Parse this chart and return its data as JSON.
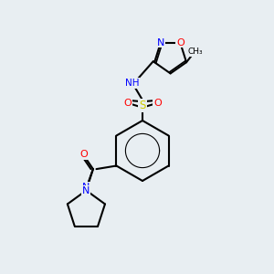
{
  "bg_color": "#e8eef2",
  "bond_color": "#000000",
  "bond_lw": 1.5,
  "atom_colors": {
    "N": "#0000ff",
    "O": "#ff0000",
    "S": "#cccc00",
    "H": "#708090",
    "C": "#000000"
  },
  "font_size": 7.5,
  "font_size_methyl": 7.0
}
